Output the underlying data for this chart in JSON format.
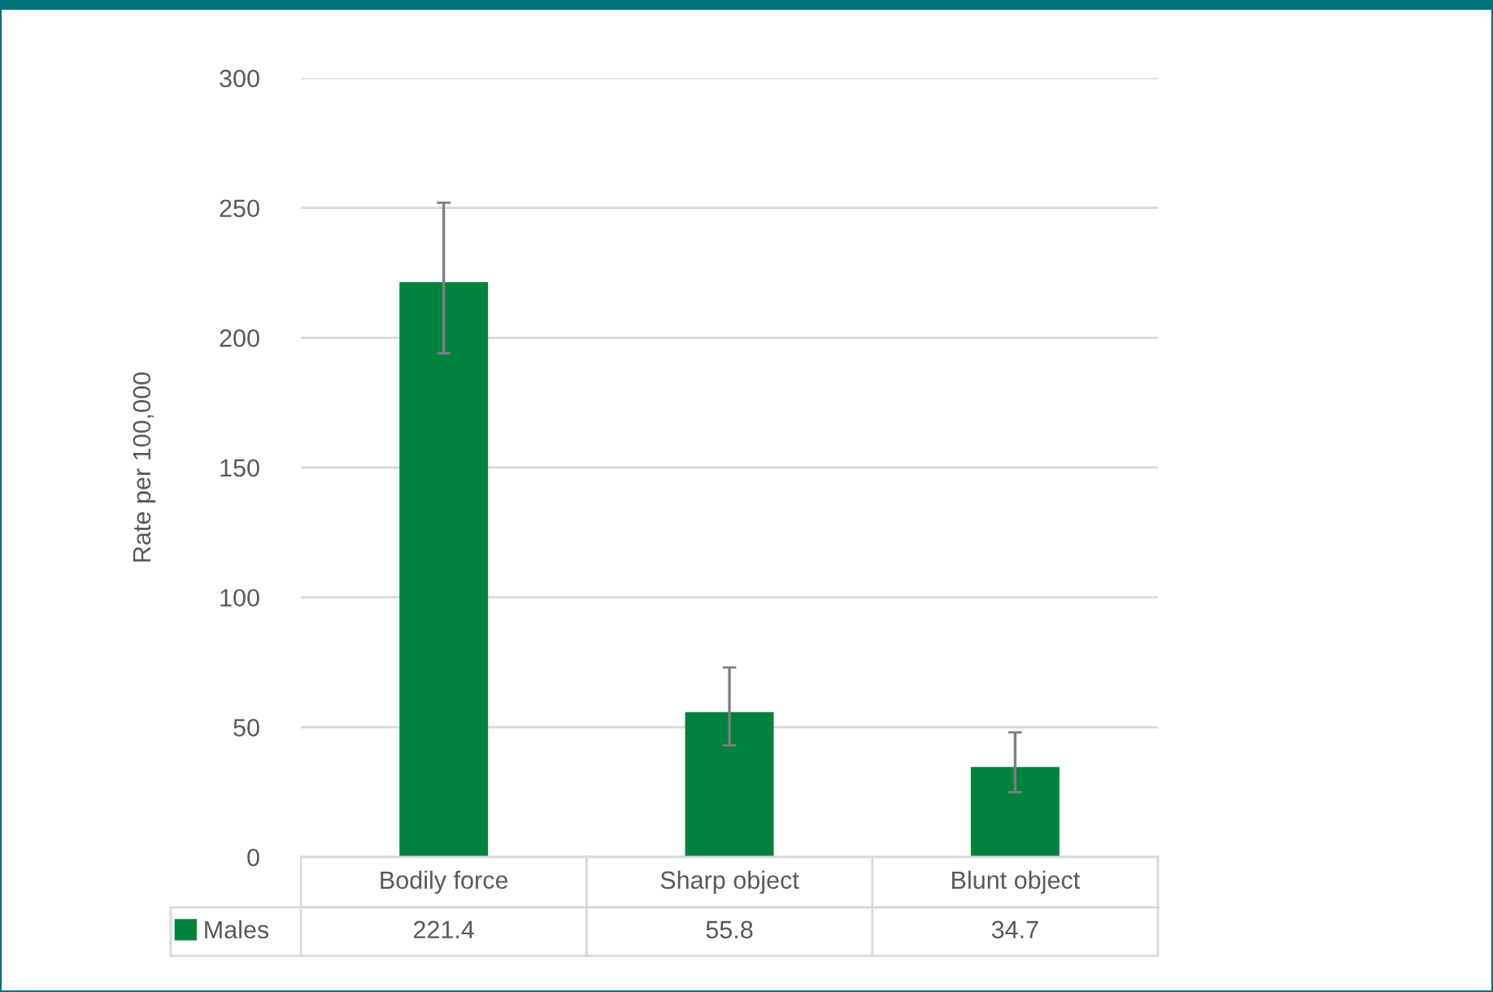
{
  "chart_data": {
    "type": "bar",
    "ylabel": "Rate per 100,000",
    "categories": [
      "Bodily force",
      "Sharp object",
      "Blunt object"
    ],
    "series": [
      {
        "name": "Males",
        "color": "#00843d",
        "values": [
          221.4,
          55.8,
          34.7
        ],
        "errors": [
          [
            194,
            252
          ],
          [
            43,
            73
          ],
          [
            25,
            48
          ]
        ]
      }
    ],
    "ylim": [
      0,
      300
    ],
    "yticks": [
      0,
      50,
      100,
      150,
      200,
      250,
      300
    ],
    "grid": "y",
    "legend": "bottom",
    "data_labels": true
  }
}
